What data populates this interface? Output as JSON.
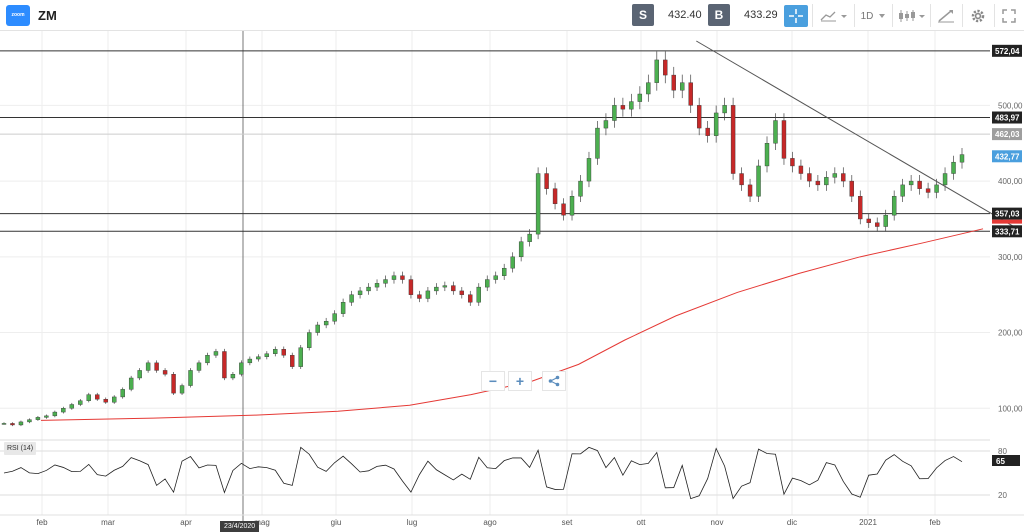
{
  "toolbar": {
    "logo_text": "zoom",
    "symbol": "ZM",
    "sell_label": "S",
    "sell_price": "432.40",
    "buy_label": "B",
    "buy_price": "433.29",
    "timeframe": "1D",
    "icons": [
      "crosshair-icon",
      "chart-type-icon",
      "candles-icon",
      "draw-icon",
      "gear-icon"
    ]
  },
  "chart_data": {
    "type": "candlestick",
    "symbol": "ZM",
    "y_axis": {
      "min": 70,
      "max": 585,
      "ticks": [
        100,
        200,
        300,
        400,
        500
      ],
      "tick_labels": [
        "100,00",
        "200,00",
        "300,00",
        "400,00",
        "500,00"
      ]
    },
    "x_axis": {
      "ticks": [
        "feb",
        "mar",
        "apr",
        "mag",
        "giu",
        "lug",
        "ago",
        "set",
        "ott",
        "nov",
        "dic",
        "2021",
        "feb"
      ]
    },
    "horizontal_lines": [
      {
        "value": 572.04,
        "label": "572,04"
      },
      {
        "value": 483.97,
        "label": "483,97"
      },
      {
        "value": 357.03,
        "label": "357,03"
      },
      {
        "value": 333.71,
        "label": "333,71"
      }
    ],
    "price_labels": [
      {
        "value": 462.03,
        "label": "462,03",
        "color": "#9e9e9e"
      },
      {
        "value": 432.77,
        "label": "432,77",
        "color": "#4a9fde"
      }
    ],
    "moving_average": {
      "color": "#e53935",
      "points": [
        [
          0.04,
          84
        ],
        [
          0.15,
          87
        ],
        [
          0.25,
          91
        ],
        [
          0.33,
          96
        ],
        [
          0.4,
          104
        ],
        [
          0.46,
          118
        ],
        [
          0.52,
          136
        ],
        [
          0.565,
          158
        ],
        [
          0.61,
          190
        ],
        [
          0.66,
          222
        ],
        [
          0.72,
          253
        ],
        [
          0.78,
          278
        ],
        [
          0.84,
          300
        ],
        [
          0.9,
          318
        ],
        [
          0.96,
          337
        ]
      ]
    },
    "trendline": {
      "from": [
        0.68,
        585
      ],
      "to": [
        0.99,
        340
      ]
    },
    "candles_close": [
      80,
      78,
      82,
      85,
      88,
      90,
      95,
      100,
      105,
      110,
      118,
      112,
      108,
      115,
      125,
      140,
      150,
      160,
      150,
      145,
      120,
      130,
      150,
      160,
      170,
      175,
      140,
      145,
      160,
      165,
      168,
      172,
      178,
      170,
      155,
      180,
      200,
      210,
      215,
      225,
      240,
      250,
      255,
      260,
      265,
      270,
      275,
      270,
      250,
      245,
      255,
      260,
      262,
      255,
      250,
      240,
      260,
      270,
      275,
      285,
      300,
      320,
      330,
      410,
      390,
      370,
      355,
      380,
      400,
      430,
      470,
      480,
      500,
      495,
      505,
      515,
      530,
      560,
      540,
      520,
      530,
      500,
      470,
      460,
      490,
      500,
      410,
      395,
      380,
      420,
      450,
      480,
      430,
      420,
      410,
      400,
      395,
      405,
      410,
      400,
      380,
      350,
      345,
      340,
      355,
      380,
      395,
      400,
      390,
      385,
      395,
      410,
      425,
      435
    ],
    "rsi": {
      "label": "RSI (14)",
      "value": "65",
      "ticks": [
        "80",
        "20"
      ]
    },
    "crosshair_date": "23/4/2020"
  },
  "zoom_controls": {
    "minus": "−",
    "plus": "+",
    "share": "⤲"
  }
}
